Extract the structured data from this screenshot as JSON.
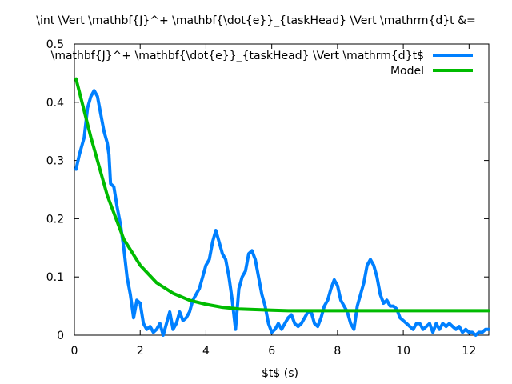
{
  "chart_data": {
    "type": "line",
    "title": "\\int \\Vert \\mathbf{J}^+ \\mathbf{\\dot{e}}_{taskHead} \\Vert \\mathrm{d}t &=",
    "xlabel": "$t$ (s)",
    "ylabel": "",
    "xlim": [
      0,
      12.6
    ],
    "ylim": [
      0,
      0.5
    ],
    "xticks": [
      0,
      2,
      4,
      6,
      8,
      10,
      12
    ],
    "yticks": [
      0,
      0.1,
      0.2,
      0.3,
      0.4,
      0.5
    ],
    "xtick_labels": [
      "0",
      "2",
      "4",
      "6",
      "8",
      "10",
      "12"
    ],
    "ytick_labels": [
      "0",
      "0.1",
      "0.2",
      "0.3",
      "0.4",
      "0.5"
    ],
    "grid": false,
    "legend_position": "top-right",
    "series": [
      {
        "name": "\\mathbf{J}^+ \\mathbf{\\dot{e}}_{taskHead} \\Vert \\mathrm{d}t$",
        "color": "#0080ff",
        "x": [
          0.05,
          0.15,
          0.3,
          0.4,
          0.5,
          0.6,
          0.7,
          0.8,
          0.9,
          1.0,
          1.05,
          1.1,
          1.2,
          1.3,
          1.4,
          1.5,
          1.6,
          1.7,
          1.8,
          1.9,
          2.0,
          2.1,
          2.2,
          2.3,
          2.4,
          2.5,
          2.6,
          2.7,
          2.8,
          2.9,
          3.0,
          3.1,
          3.2,
          3.3,
          3.4,
          3.5,
          3.6,
          3.7,
          3.8,
          3.9,
          4.0,
          4.1,
          4.2,
          4.3,
          4.4,
          4.5,
          4.6,
          4.7,
          4.8,
          4.9,
          5.0,
          5.1,
          5.2,
          5.3,
          5.4,
          5.5,
          5.6,
          5.7,
          5.8,
          5.9,
          6.0,
          6.1,
          6.2,
          6.3,
          6.4,
          6.5,
          6.6,
          6.7,
          6.8,
          6.9,
          7.0,
          7.1,
          7.2,
          7.3,
          7.4,
          7.5,
          7.6,
          7.7,
          7.8,
          7.9,
          8.0,
          8.1,
          8.2,
          8.3,
          8.4,
          8.5,
          8.6,
          8.7,
          8.8,
          8.9,
          9.0,
          9.1,
          9.2,
          9.3,
          9.4,
          9.5,
          9.6,
          9.7,
          9.8,
          9.9,
          10.0,
          10.1,
          10.2,
          10.3,
          10.4,
          10.5,
          10.6,
          10.7,
          10.8,
          10.9,
          11.0,
          11.1,
          11.2,
          11.3,
          11.4,
          11.5,
          11.6,
          11.7,
          11.8,
          11.9,
          12.0,
          12.1,
          12.2,
          12.3,
          12.4,
          12.5,
          12.6
        ],
        "values": [
          0.285,
          0.31,
          0.34,
          0.39,
          0.41,
          0.42,
          0.41,
          0.38,
          0.35,
          0.33,
          0.31,
          0.26,
          0.255,
          0.22,
          0.19,
          0.15,
          0.1,
          0.07,
          0.03,
          0.06,
          0.055,
          0.02,
          0.01,
          0.015,
          0.005,
          0.01,
          0.02,
          0.0,
          0.02,
          0.04,
          0.01,
          0.02,
          0.04,
          0.025,
          0.03,
          0.04,
          0.06,
          0.07,
          0.08,
          0.1,
          0.12,
          0.13,
          0.16,
          0.18,
          0.16,
          0.14,
          0.13,
          0.1,
          0.06,
          0.01,
          0.08,
          0.1,
          0.11,
          0.14,
          0.145,
          0.13,
          0.1,
          0.07,
          0.05,
          0.02,
          0.005,
          0.01,
          0.02,
          0.01,
          0.02,
          0.03,
          0.035,
          0.02,
          0.015,
          0.02,
          0.03,
          0.04,
          0.04,
          0.02,
          0.015,
          0.03,
          0.05,
          0.06,
          0.08,
          0.095,
          0.085,
          0.06,
          0.05,
          0.04,
          0.02,
          0.01,
          0.05,
          0.07,
          0.09,
          0.12,
          0.13,
          0.12,
          0.1,
          0.07,
          0.055,
          0.06,
          0.05,
          0.05,
          0.045,
          0.03,
          0.025,
          0.02,
          0.015,
          0.01,
          0.02,
          0.02,
          0.01,
          0.015,
          0.02,
          0.005,
          0.02,
          0.01,
          0.02,
          0.015,
          0.02,
          0.015,
          0.01,
          0.015,
          0.005,
          0.01,
          0.005,
          0.005,
          0.0,
          0.005,
          0.005,
          0.01,
          0.01
        ]
      },
      {
        "name": "Model",
        "color": "#00bb00",
        "x": [
          0.05,
          0.5,
          1.0,
          1.5,
          2.0,
          2.5,
          3.0,
          3.5,
          4.0,
          4.5,
          5.0,
          5.5,
          6.0,
          6.5,
          7.0,
          7.5,
          8.0,
          9.0,
          10.0,
          11.0,
          12.0,
          12.6
        ],
        "values": [
          0.44,
          0.34,
          0.24,
          0.165,
          0.12,
          0.09,
          0.072,
          0.06,
          0.053,
          0.048,
          0.045,
          0.044,
          0.043,
          0.042,
          0.042,
          0.042,
          0.042,
          0.042,
          0.042,
          0.042,
          0.042,
          0.042
        ]
      }
    ]
  }
}
